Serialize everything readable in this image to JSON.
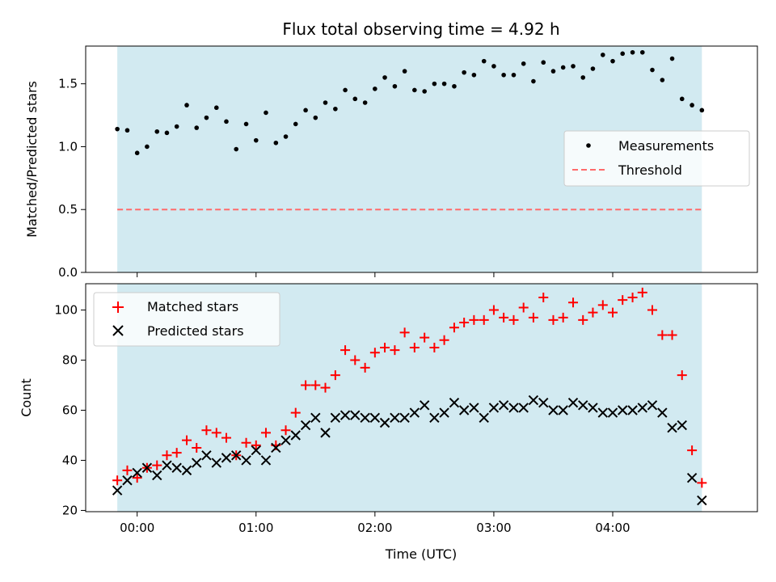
{
  "title": "Flux total observing time = 4.92 h",
  "colors": {
    "shade": "#add8e6",
    "threshold": "#ff6b6b",
    "matched": "#ff0000",
    "predicted": "#000000",
    "points": "#000000"
  },
  "chart_data": [
    {
      "type": "scatter",
      "ylabel": "Matched/Predicted stars",
      "ylim": [
        0,
        1.8
      ],
      "yticks": [
        0.0,
        0.5,
        1.0,
        1.5
      ],
      "ytick_labels": [
        "0.0",
        "0.5",
        "1.0",
        "1.5"
      ],
      "xlim": [
        -0.433,
        5.217
      ],
      "shaded_span": [
        -0.167,
        4.75
      ],
      "legend": [
        "Measurements",
        "Threshold"
      ],
      "legend_position": "center-right",
      "threshold": 0.5,
      "x": [
        -0.167,
        -0.083,
        0.0,
        0.083,
        0.167,
        0.25,
        0.333,
        0.417,
        0.5,
        0.583,
        0.667,
        0.75,
        0.833,
        0.917,
        1.0,
        1.083,
        1.167,
        1.25,
        1.333,
        1.417,
        1.5,
        1.583,
        1.667,
        1.75,
        1.833,
        1.917,
        2.0,
        2.083,
        2.167,
        2.25,
        2.333,
        2.417,
        2.5,
        2.583,
        2.667,
        2.75,
        2.833,
        2.917,
        3.0,
        3.083,
        3.167,
        3.25,
        3.333,
        3.417,
        3.5,
        3.583,
        3.667,
        3.75,
        3.833,
        3.917,
        4.0,
        4.083,
        4.167,
        4.25,
        4.333,
        4.417,
        4.5,
        4.583,
        4.667,
        4.75
      ],
      "y": [
        1.14,
        1.13,
        0.95,
        1.0,
        1.12,
        1.11,
        1.16,
        1.33,
        1.15,
        1.23,
        1.31,
        1.2,
        0.98,
        1.18,
        1.05,
        1.27,
        1.03,
        1.08,
        1.18,
        1.29,
        1.23,
        1.35,
        1.3,
        1.45,
        1.38,
        1.35,
        1.46,
        1.55,
        1.48,
        1.6,
        1.45,
        1.44,
        1.5,
        1.5,
        1.48,
        1.59,
        1.57,
        1.68,
        1.64,
        1.57,
        1.57,
        1.66,
        1.52,
        1.67,
        1.6,
        1.63,
        1.64,
        1.55,
        1.62,
        1.73,
        1.68,
        1.74,
        1.75,
        1.75,
        1.61,
        1.53,
        1.7,
        1.38,
        1.33,
        1.29
      ]
    },
    {
      "type": "scatter",
      "xlabel": "Time (UTC)",
      "ylabel": "Count",
      "ylim": [
        19.5,
        110.5
      ],
      "yticks": [
        20,
        40,
        60,
        80,
        100
      ],
      "ytick_labels": [
        "20",
        "40",
        "60",
        "80",
        "100"
      ],
      "xlim": [
        -0.433,
        5.217
      ],
      "xticks": [
        0,
        1,
        2,
        3,
        4
      ],
      "xtick_labels": [
        "00:00",
        "01:00",
        "02:00",
        "03:00",
        "04:00"
      ],
      "shaded_span": [
        -0.167,
        4.75
      ],
      "legend_position": "top-left",
      "series": [
        {
          "name": "Matched stars",
          "marker": "+",
          "values": [
            32,
            36,
            33,
            37,
            38,
            42,
            43,
            48,
            45,
            52,
            51,
            49,
            42,
            47,
            46,
            51,
            46,
            52,
            59,
            70,
            70,
            69,
            74,
            84,
            80,
            77,
            83,
            85,
            84,
            91,
            85,
            89,
            85,
            88,
            93,
            95,
            96,
            96,
            100,
            97,
            96,
            101,
            97,
            105,
            96,
            97,
            103,
            96,
            99,
            102,
            99,
            104,
            105,
            107,
            100,
            90,
            90,
            74,
            44,
            31
          ]
        },
        {
          "name": "Predicted stars",
          "marker": "x",
          "values": [
            28,
            32,
            35,
            37,
            34,
            38,
            37,
            36,
            39,
            42,
            39,
            41,
            42,
            40,
            44,
            40,
            45,
            48,
            50,
            54,
            57,
            51,
            57,
            58,
            58,
            57,
            57,
            55,
            57,
            57,
            59,
            62,
            57,
            59,
            63,
            60,
            61,
            57,
            61,
            62,
            61,
            61,
            64,
            63,
            60,
            60,
            63,
            62,
            61,
            59,
            59,
            60,
            60,
            61,
            62,
            59,
            53,
            54,
            33,
            24
          ]
        }
      ]
    }
  ]
}
